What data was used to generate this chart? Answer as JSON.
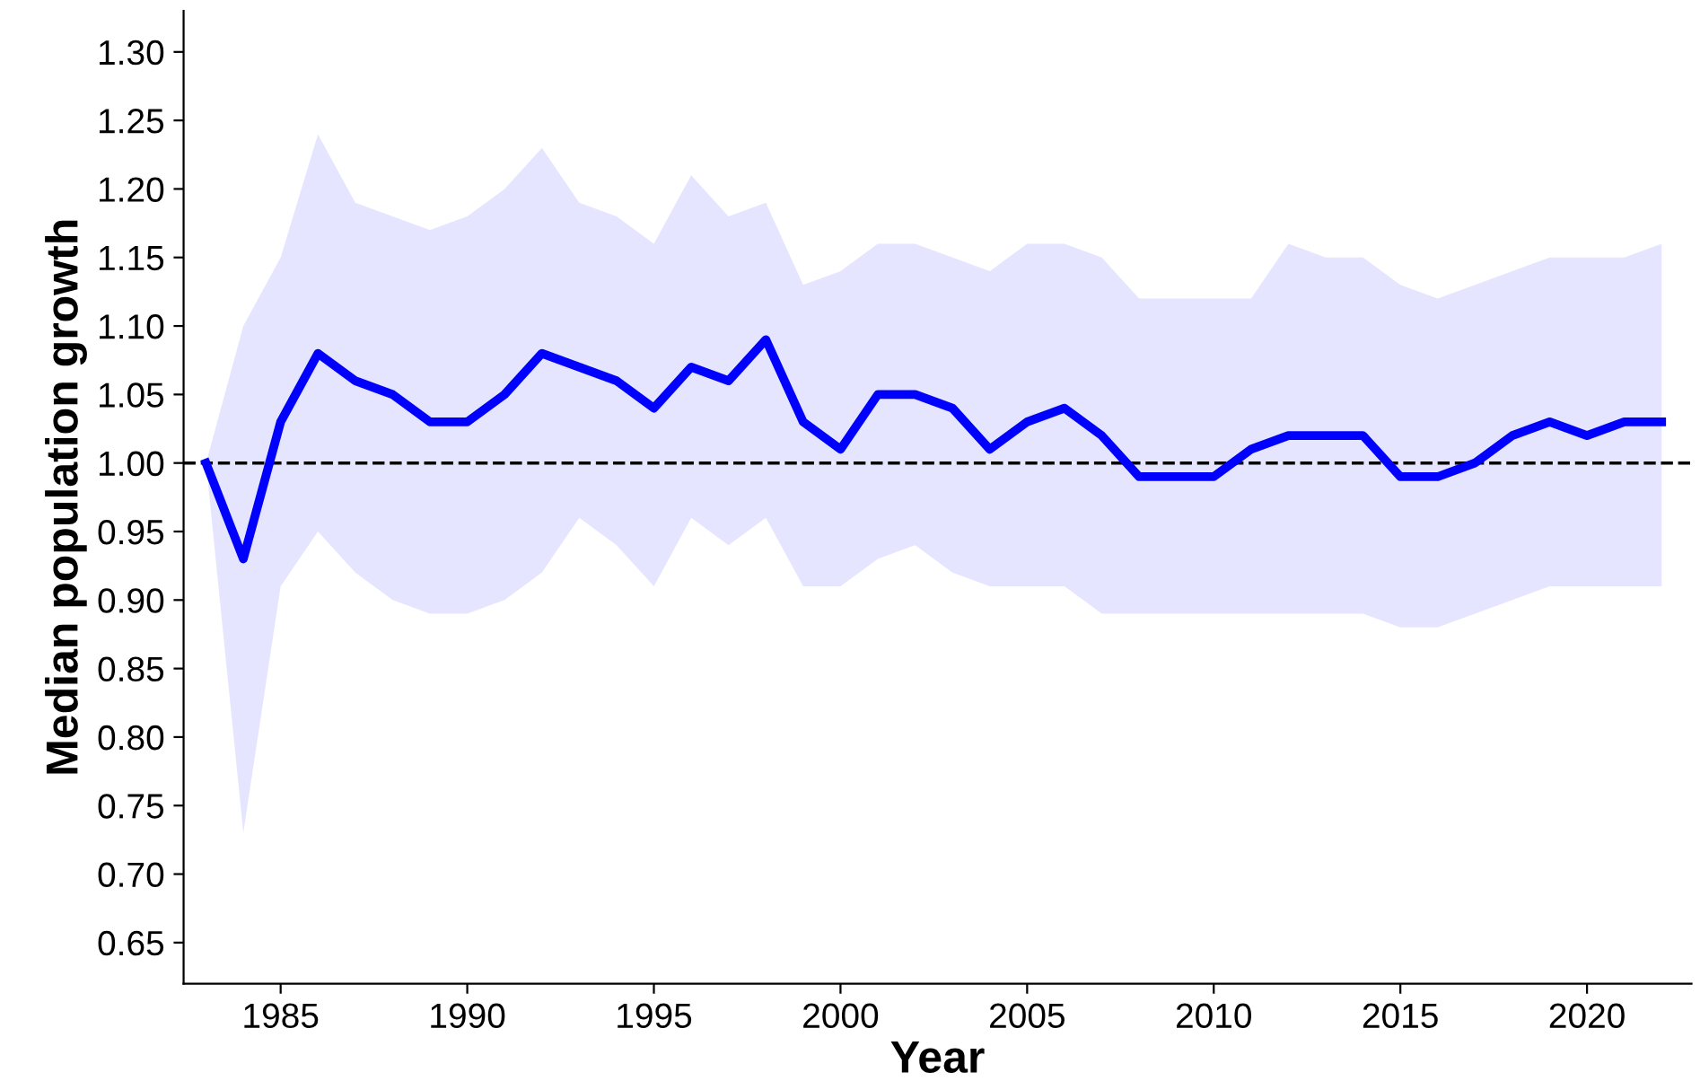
{
  "chart_data": {
    "type": "line",
    "xlabel": "Year",
    "ylabel": "Median population growth",
    "x": [
      1983,
      1984,
      1985,
      1986,
      1987,
      1988,
      1989,
      1990,
      1991,
      1992,
      1993,
      1994,
      1995,
      1996,
      1997,
      1998,
      1999,
      2000,
      2001,
      2002,
      2003,
      2004,
      2005,
      2006,
      2007,
      2008,
      2009,
      2010,
      2011,
      2012,
      2013,
      2014,
      2015,
      2016,
      2017,
      2018,
      2019,
      2020,
      2021,
      2022
    ],
    "series": [
      {
        "color": "#0000ff",
        "values": [
          1.0,
          0.93,
          1.03,
          1.08,
          1.06,
          1.05,
          1.03,
          1.03,
          1.05,
          1.08,
          1.07,
          1.06,
          1.04,
          1.07,
          1.06,
          1.09,
          1.03,
          1.01,
          1.05,
          1.05,
          1.04,
          1.01,
          1.03,
          1.04,
          1.02,
          0.99,
          0.99,
          0.99,
          1.01,
          1.02,
          1.02,
          1.02,
          0.99,
          0.99,
          1.0,
          1.02,
          1.03,
          1.02,
          1.03,
          1.03
        ],
        "upper": [
          1.0,
          1.1,
          1.15,
          1.24,
          1.19,
          1.18,
          1.17,
          1.18,
          1.2,
          1.23,
          1.19,
          1.18,
          1.16,
          1.21,
          1.18,
          1.19,
          1.13,
          1.14,
          1.16,
          1.16,
          1.15,
          1.14,
          1.16,
          1.16,
          1.15,
          1.12,
          1.12,
          1.12,
          1.12,
          1.16,
          1.15,
          1.15,
          1.13,
          1.12,
          1.13,
          1.14,
          1.15,
          1.15,
          1.15,
          1.16
        ],
        "lower": [
          1.0,
          0.73,
          0.91,
          0.95,
          0.92,
          0.9,
          0.89,
          0.89,
          0.9,
          0.92,
          0.96,
          0.94,
          0.91,
          0.96,
          0.94,
          0.96,
          0.91,
          0.91,
          0.93,
          0.94,
          0.92,
          0.91,
          0.91,
          0.91,
          0.89,
          0.89,
          0.89,
          0.89,
          0.89,
          0.89,
          0.89,
          0.89,
          0.88,
          0.88,
          0.89,
          0.9,
          0.91,
          0.91,
          0.91,
          0.91
        ]
      }
    ],
    "xlim": [
      1982.4,
      2022.8
    ],
    "ylim": [
      0.62,
      1.33
    ],
    "xticks": [
      1985,
      1990,
      1995,
      2000,
      2005,
      2010,
      2015,
      2020
    ],
    "yticks": [
      {
        "value": 0.65,
        "label": "0.65"
      },
      {
        "value": 0.7,
        "label": "0.70"
      },
      {
        "value": 0.75,
        "label": "0.75"
      },
      {
        "value": 0.8,
        "label": "0.80"
      },
      {
        "value": 0.85,
        "label": "0.85"
      },
      {
        "value": 0.9,
        "label": "0.90"
      },
      {
        "value": 0.95,
        "label": "0.95"
      },
      {
        "value": 1.0,
        "label": "1.00"
      },
      {
        "value": 1.05,
        "label": "1.05"
      },
      {
        "value": 1.1,
        "label": "1.10"
      },
      {
        "value": 1.15,
        "label": "1.15"
      },
      {
        "value": 1.2,
        "label": "1.20"
      },
      {
        "value": 1.25,
        "label": "1.25"
      },
      {
        "value": 1.3,
        "label": "1.30"
      }
    ],
    "ref_lines": [
      {
        "axis": "y",
        "value": 1.0,
        "color": "#000000",
        "line_style": "dashed"
      }
    ],
    "grid": false,
    "legend": false,
    "marker": "none",
    "line_style": "solid"
  }
}
